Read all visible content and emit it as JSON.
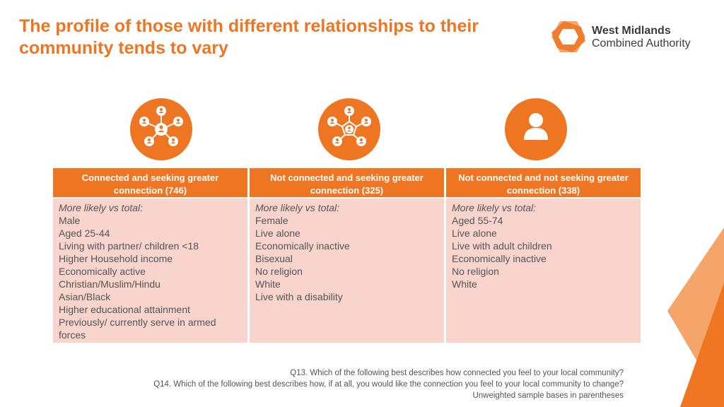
{
  "header": {
    "title": "The profile of those with different relationships to their community tends to vary"
  },
  "logo": {
    "line1": "West Midlands",
    "line2": "Combined Authority"
  },
  "icons": [
    "network-people-icon",
    "network-people-disconnected-icon",
    "single-person-icon"
  ],
  "columns": [
    {
      "header": "Connected and seeking greater connection (746)",
      "intro": "More likely vs total:",
      "items": [
        "Male",
        "Aged 25-44",
        "Living with partner/ children <18",
        "Higher Household income",
        "Economically active",
        "Christian/Muslim/Hindu",
        "Asian/Black",
        "Higher educational attainment",
        "Previously/ currently serve in armed forces"
      ]
    },
    {
      "header": "Not connected and seeking greater connection (325)",
      "intro": "More likely vs total:",
      "items": [
        "Female",
        "Live alone",
        "Economically inactive",
        "Bisexual",
        "No religion",
        "White",
        "Live with a disability"
      ]
    },
    {
      "header": "Not connected and not seeking greater connection (338)",
      "intro": "More likely vs total:",
      "items": [
        "Aged 55-74",
        "Live alone",
        "Live with adult children",
        "Economically inactive",
        "No religion",
        "White"
      ]
    }
  ],
  "footnotes": [
    "Q13. Which of the following best describes how connected you feel to your local community?",
    "Q14. Which of the following best describes how, if at all, you would like the connection you feel to your local community to change?",
    "Unweighted sample bases in parentheses"
  ],
  "colors": {
    "accent": "#ee7623",
    "cell_bg": "#f8d4cc",
    "text": "#555555"
  }
}
